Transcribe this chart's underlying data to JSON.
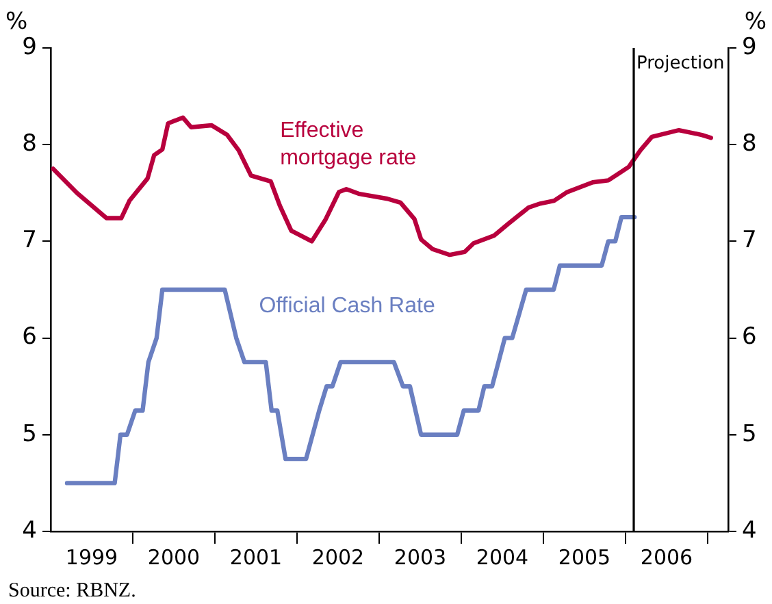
{
  "chart_data": {
    "type": "line",
    "ylabel": "%",
    "y2label": "%",
    "x": [
      1999.2,
      1999.78,
      1999.85,
      1999.93,
      2000.03,
      2000.12,
      2000.19,
      2000.29,
      2000.36,
      2001.12,
      2001.26,
      2001.36,
      2001.62,
      2001.69,
      2001.76,
      2001.86,
      2002.11,
      2002.27,
      2002.36,
      2002.43,
      2002.53,
      2003.18,
      2003.29,
      2003.375,
      2003.51,
      2003.95,
      2004.03,
      2004.21,
      2004.28,
      2004.375,
      2004.53,
      2004.62,
      2004.79,
      2005.125,
      2005.2,
      2005.71,
      2005.79,
      2005.875,
      2005.95,
      2006.11
    ],
    "series": [
      {
        "name": "Official Cash Rate",
        "color": "#6a7fc1",
        "values": [
          4.5,
          4.5,
          5.0,
          5.0,
          5.25,
          5.25,
          5.75,
          6.0,
          6.5,
          6.5,
          6.0,
          5.75,
          5.75,
          5.25,
          5.25,
          4.75,
          4.75,
          5.25,
          5.5,
          5.5,
          5.75,
          5.75,
          5.5,
          5.5,
          5.0,
          5.0,
          5.25,
          5.25,
          5.5,
          5.5,
          6.0,
          6.0,
          6.5,
          6.5,
          6.75,
          6.75,
          7.0,
          7.0,
          7.25,
          7.25
        ]
      },
      {
        "name": "Effective mortgage rate",
        "color": "#b8003d",
        "x": [
          1999.03,
          1999.32,
          1999.68,
          1999.86,
          1999.96,
          2000.18,
          2000.26,
          2000.36,
          2000.43,
          2000.61,
          2000.71,
          2000.96,
          2001.15,
          2001.29,
          2001.44,
          2001.68,
          2001.79,
          2001.93,
          2002.18,
          2002.35,
          2002.51,
          2002.6,
          2002.76,
          2003.1,
          2003.26,
          2003.43,
          2003.51,
          2003.65,
          2003.86,
          2004.04,
          2004.15,
          2004.4,
          2004.57,
          2004.82,
          2004.96,
          2005.13,
          2005.29,
          2005.6,
          2005.79,
          2006.04,
          2006.18,
          2006.32,
          2006.65,
          2006.93,
          2007.04
        ],
        "values": [
          7.75,
          7.5,
          7.24,
          7.24,
          7.42,
          7.65,
          7.89,
          7.95,
          8.22,
          8.28,
          8.18,
          8.2,
          8.1,
          7.94,
          7.68,
          7.62,
          7.37,
          7.11,
          7.0,
          7.23,
          7.51,
          7.54,
          7.49,
          7.44,
          7.4,
          7.23,
          7.02,
          6.92,
          6.86,
          6.89,
          6.98,
          7.06,
          7.18,
          7.35,
          7.39,
          7.42,
          7.51,
          7.61,
          7.63,
          7.77,
          7.94,
          8.08,
          8.15,
          8.1,
          8.07
        ]
      }
    ],
    "xlim": [
      1999,
      2007.25
    ],
    "xticks": [
      {
        "value": 1999.5,
        "label": "1999"
      },
      {
        "value": 2000,
        "label": null
      },
      {
        "value": 2000.5,
        "label": "2000"
      },
      {
        "value": 2001,
        "label": null
      },
      {
        "value": 2001.5,
        "label": "2001"
      },
      {
        "value": 2002,
        "label": null
      },
      {
        "value": 2002.5,
        "label": "2002"
      },
      {
        "value": 2003,
        "label": null
      },
      {
        "value": 2003.5,
        "label": "2003"
      },
      {
        "value": 2004,
        "label": null
      },
      {
        "value": 2004.5,
        "label": "2004"
      },
      {
        "value": 2005,
        "label": null
      },
      {
        "value": 2005.5,
        "label": "2005"
      },
      {
        "value": 2006,
        "label": null
      },
      {
        "value": 2006.5,
        "label": "2006"
      },
      {
        "value": 2007,
        "label": null
      }
    ],
    "ylim": [
      4,
      9
    ],
    "yticks": [
      4,
      5,
      6,
      7,
      8,
      9
    ],
    "y2lim": [
      4,
      9
    ],
    "y2ticks": [
      4,
      5,
      6,
      7,
      8,
      9
    ],
    "ref_lines": [
      {
        "axis": "x",
        "value": 2006.1,
        "label": "Projection",
        "color": "#000000"
      }
    ],
    "annotations": [
      "Source: RBNZ."
    ],
    "grid": false,
    "legend": false,
    "marker": "none",
    "line_style": "solid"
  }
}
